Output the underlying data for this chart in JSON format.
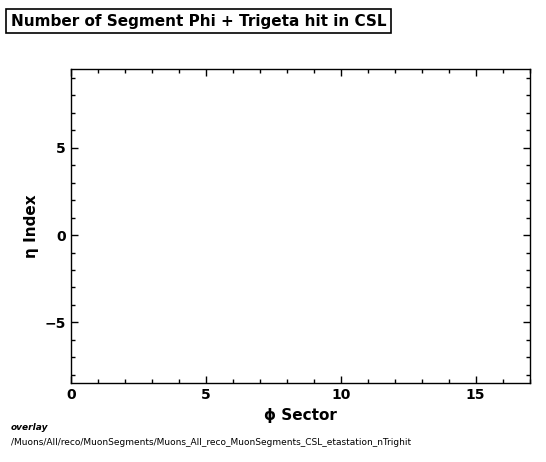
{
  "title": "Number of Segment Phi + Trigeta hit in CSL",
  "xlabel": "ϕ Sector",
  "ylabel": "η Index",
  "xlim": [
    0,
    17
  ],
  "ylim": [
    -8.5,
    9.5
  ],
  "xticks": [
    0,
    5,
    10,
    15
  ],
  "yticks": [
    -5,
    0,
    5
  ],
  "bottom_label1": "overlay",
  "bottom_label2": "/Muons/All/reco/MuonSegments/Muons_All_reco_MuonSegments_CSL_etastation_nTrighit",
  "background_color": "#ffffff",
  "title_fontsize": 11,
  "axis_label_fontsize": 11,
  "tick_fontsize": 10,
  "bottom_fontsize": 6.5
}
